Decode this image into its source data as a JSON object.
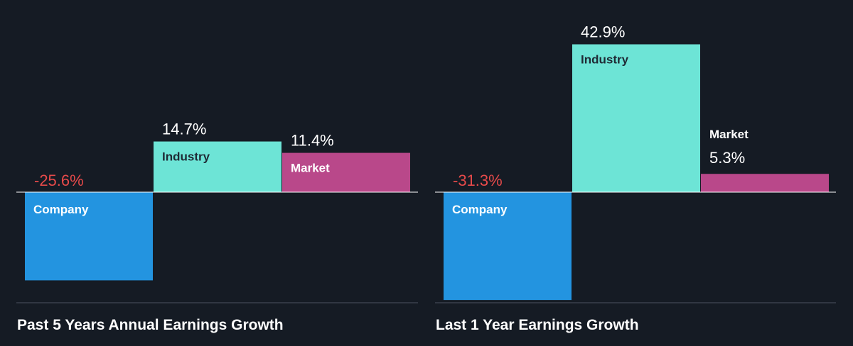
{
  "colors": {
    "background": "#151b24",
    "company": "#2394e0",
    "industry": "#6de4d6",
    "market": "#b9488a",
    "negative_text": "#e64a4a",
    "positive_text": "#ffffff",
    "label_dark": "#1f2a35",
    "label_light": "#ffffff",
    "axis": "#ffffff",
    "divider": "#4a5260"
  },
  "chart_data": [
    {
      "type": "bar",
      "title": "Past 5 Years Annual Earnings Growth",
      "categories": [
        "Company",
        "Industry",
        "Market"
      ],
      "values": [
        -25.6,
        14.7,
        11.4
      ],
      "value_labels": [
        "-25.6%",
        "14.7%",
        "11.4%"
      ],
      "unit": "%",
      "grid": false,
      "legend": "none"
    },
    {
      "type": "bar",
      "title": "Last 1 Year Earnings Growth",
      "categories": [
        "Company",
        "Industry",
        "Market"
      ],
      "values": [
        -31.3,
        42.9,
        5.3
      ],
      "value_labels": [
        "-31.3%",
        "42.9%",
        "5.3%"
      ],
      "unit": "%",
      "grid": false,
      "legend": "none"
    }
  ]
}
